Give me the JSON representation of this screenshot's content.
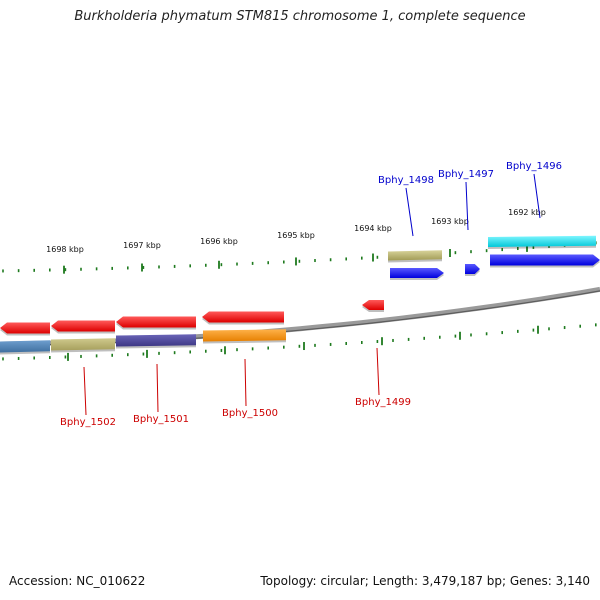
{
  "title": "Burkholderia phymatum STM815 chromosome 1, complete sequence",
  "footer": {
    "accession": "Accession: NC_010622",
    "summary": "Topology: circular; Length: 3,479,187 bp; Genes: 3,140"
  },
  "colors": {
    "backbone": "#8a8a8a",
    "tick": "#1f7a1f",
    "forward_label": "#0000cc",
    "reverse_label": "#cc0000"
  },
  "ticks": [
    "1698 kbp",
    "1697 kbp",
    "1696 kbp",
    "1695 kbp",
    "1694 kbp",
    "1693 kbp",
    "1692 kbp"
  ],
  "genes": [
    {
      "name": "Bphy_1496",
      "strand": "forward"
    },
    {
      "name": "Bphy_1497",
      "strand": "forward"
    },
    {
      "name": "Bphy_1498",
      "strand": "forward"
    },
    {
      "name": "Bphy_1499",
      "strand": "reverse"
    },
    {
      "name": "Bphy_1500",
      "strand": "reverse"
    },
    {
      "name": "Bphy_1501",
      "strand": "reverse"
    },
    {
      "name": "Bphy_1502",
      "strand": "reverse"
    }
  ]
}
